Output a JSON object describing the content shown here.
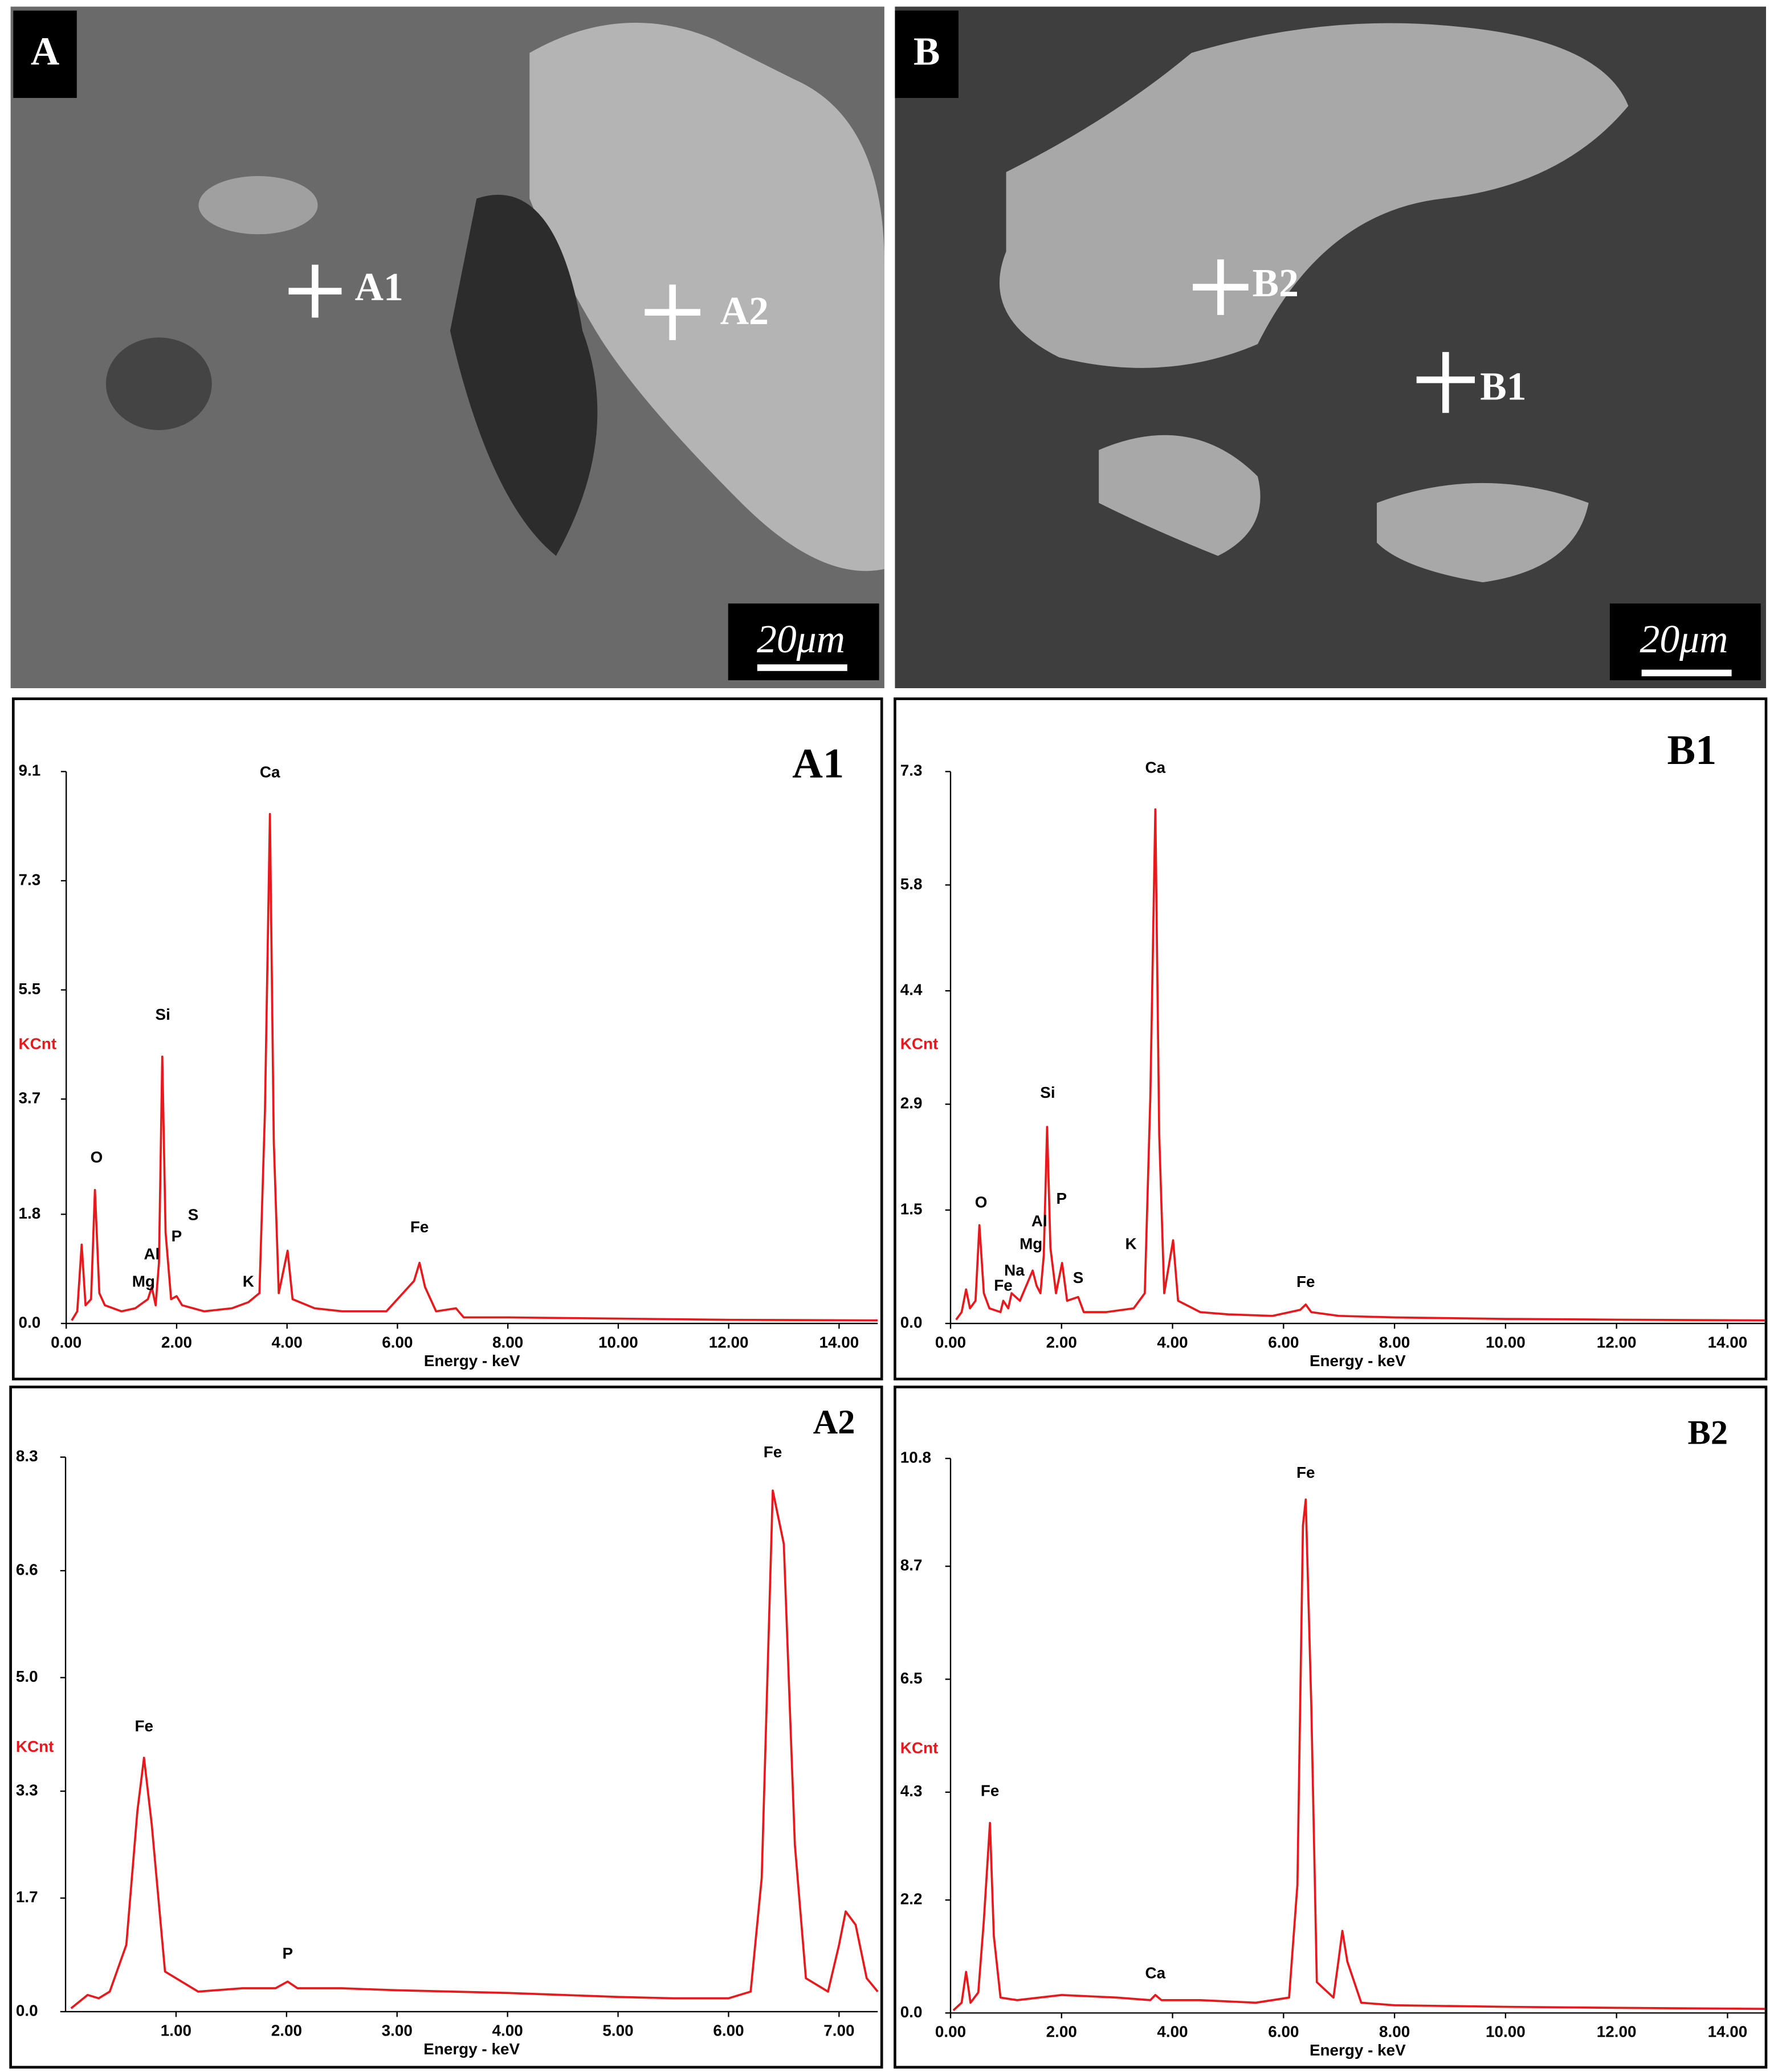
{
  "images": [
    {
      "label": "A",
      "markers": [
        "A1",
        "A2"
      ],
      "scale_bar": "20μm"
    },
    {
      "label": "B",
      "markers": [
        "B2",
        "B1"
      ],
      "scale_bar": "20μm"
    }
  ],
  "chart_data": [
    {
      "type": "line",
      "title": "A1",
      "y_label": "KCnt",
      "x_label": "Energy - keV",
      "color": "#e8191c",
      "x": [
        0.1,
        0.2,
        0.28,
        0.35,
        0.45,
        0.52,
        0.6,
        0.7,
        1.0,
        1.25,
        1.48,
        1.55,
        1.62,
        1.68,
        1.74,
        1.8,
        1.9,
        2.0,
        2.1,
        2.5,
        3.0,
        3.3,
        3.5,
        3.6,
        3.69,
        3.76,
        3.85,
        4.01,
        4.1,
        4.5,
        5.0,
        5.8,
        6.3,
        6.4,
        6.5,
        6.7,
        7.06,
        7.2,
        8,
        10,
        12,
        14.7
      ],
      "series": [
        {
          "name": "A1",
          "color": "#e8191c",
          "values": [
            0.05,
            0.2,
            1.3,
            0.3,
            0.4,
            2.2,
            0.5,
            0.3,
            0.2,
            0.25,
            0.4,
            0.6,
            0.3,
            1.0,
            4.4,
            1.5,
            0.4,
            0.45,
            0.3,
            0.2,
            0.25,
            0.35,
            0.5,
            3.5,
            8.4,
            3.0,
            0.5,
            1.2,
            0.4,
            0.25,
            0.2,
            0.2,
            0.7,
            1.0,
            0.6,
            0.2,
            0.25,
            0.1,
            0.1,
            0.08,
            0.06,
            0.05
          ]
        }
      ],
      "annotations": [
        {
          "text": "O",
          "x": 0.55,
          "y": 2.55
        },
        {
          "text": "Si",
          "x": 1.75,
          "y": 4.9
        },
        {
          "text": "Ca",
          "x": 3.69,
          "y": 8.9
        },
        {
          "text": "Mg",
          "x": 1.4,
          "y": 0.5
        },
        {
          "text": "Al",
          "x": 1.55,
          "y": 0.95
        },
        {
          "text": "P",
          "x": 2.0,
          "y": 1.25
        },
        {
          "text": "S",
          "x": 2.3,
          "y": 1.6
        },
        {
          "text": "K",
          "x": 3.3,
          "y": 0.5
        },
        {
          "text": "Fe",
          "x": 6.4,
          "y": 1.4
        }
      ],
      "xlim": [
        0,
        14.7
      ],
      "ylim": [
        0,
        9.1
      ],
      "xticks": [
        {
          "value": 0,
          "label": "0.00"
        },
        {
          "value": 2,
          "label": "2.00"
        },
        {
          "value": 4,
          "label": "4.00"
        },
        {
          "value": 6,
          "label": "6.00"
        },
        {
          "value": 8,
          "label": "8.00"
        },
        {
          "value": 10,
          "label": "10.00"
        },
        {
          "value": 12,
          "label": "12.00"
        },
        {
          "value": 14,
          "label": "14.00"
        }
      ],
      "yticks": [
        {
          "value": 0,
          "label": "0.0"
        },
        1.8,
        3.7,
        5.5,
        7.3,
        9.1
      ]
    },
    {
      "type": "line",
      "title": "B1",
      "y_label": "KCnt",
      "x_label": "Energy - keV",
      "color": "#e8191c",
      "x": [
        0.1,
        0.2,
        0.28,
        0.35,
        0.45,
        0.52,
        0.6,
        0.7,
        0.9,
        0.95,
        1.04,
        1.1,
        1.25,
        1.48,
        1.55,
        1.62,
        1.68,
        1.74,
        1.8,
        1.9,
        2.01,
        2.1,
        2.3,
        2.4,
        2.8,
        3.3,
        3.5,
        3.6,
        3.69,
        3.76,
        3.85,
        4.01,
        4.1,
        4.5,
        5.0,
        5.8,
        6.3,
        6.4,
        6.5,
        7.0,
        8,
        10,
        12,
        14.67
      ],
      "series": [
        {
          "name": "B1",
          "color": "#e8191c",
          "values": [
            0.05,
            0.15,
            0.45,
            0.2,
            0.3,
            1.3,
            0.4,
            0.2,
            0.15,
            0.3,
            0.2,
            0.4,
            0.3,
            0.7,
            0.5,
            0.4,
            0.9,
            2.6,
            1.0,
            0.4,
            0.8,
            0.3,
            0.35,
            0.15,
            0.15,
            0.2,
            0.4,
            3.0,
            6.8,
            2.5,
            0.4,
            1.1,
            0.3,
            0.15,
            0.12,
            0.1,
            0.18,
            0.25,
            0.15,
            0.1,
            0.08,
            0.06,
            0.05,
            0.04
          ]
        }
      ],
      "annotations": [
        {
          "text": "O",
          "x": 0.55,
          "y": 1.45
        },
        {
          "text": "Fe",
          "x": 0.95,
          "y": 0.35
        },
        {
          "text": "Na",
          "x": 1.15,
          "y": 0.55
        },
        {
          "text": "Mg",
          "x": 1.45,
          "y": 0.9
        },
        {
          "text": "Al",
          "x": 1.6,
          "y": 1.2
        },
        {
          "text": "P",
          "x": 2.0,
          "y": 1.5
        },
        {
          "text": "S",
          "x": 2.3,
          "y": 0.45
        },
        {
          "text": "K",
          "x": 3.25,
          "y": 0.9
        },
        {
          "text": "Si",
          "x": 1.75,
          "y": 2.9
        },
        {
          "text": "Ca",
          "x": 3.69,
          "y": 7.2
        },
        {
          "text": "Fe",
          "x": 6.4,
          "y": 0.4
        }
      ],
      "xlim": [
        0,
        14.67
      ],
      "ylim": [
        0,
        7.3
      ],
      "xticks": [
        {
          "value": 0,
          "label": "0.00"
        },
        {
          "value": 2,
          "label": "2.00"
        },
        {
          "value": 4,
          "label": "4.00"
        },
        {
          "value": 6,
          "label": "6.00"
        },
        {
          "value": 8,
          "label": "8.00"
        },
        {
          "value": 10,
          "label": "10.00"
        },
        {
          "value": 12,
          "label": "12.00"
        },
        {
          "value": 14,
          "label": "14.00"
        }
      ],
      "yticks": [
        {
          "value": 0,
          "label": "0.0"
        },
        1.5,
        2.9,
        4.4,
        5.8,
        7.3
      ]
    },
    {
      "type": "line",
      "title": "A2",
      "y_label": "KCnt",
      "x_label": "Energy - keV",
      "color": "#e8191c",
      "x": [
        0.05,
        0.2,
        0.3,
        0.4,
        0.55,
        0.65,
        0.71,
        0.78,
        0.9,
        1.2,
        1.6,
        1.9,
        2.01,
        2.1,
        2.5,
        3.0,
        3.5,
        4.0,
        4.5,
        5.0,
        5.5,
        6.0,
        6.2,
        6.3,
        6.4,
        6.5,
        6.6,
        6.7,
        6.9,
        7.0,
        7.06,
        7.15,
        7.25,
        7.35
      ],
      "series": [
        {
          "name": "A2",
          "color": "#e8191c",
          "values": [
            0.05,
            0.25,
            0.2,
            0.3,
            1.0,
            3.0,
            3.8,
            2.8,
            0.6,
            0.3,
            0.35,
            0.35,
            0.45,
            0.35,
            0.35,
            0.32,
            0.3,
            0.28,
            0.25,
            0.22,
            0.2,
            0.2,
            0.3,
            2.0,
            7.8,
            7.0,
            2.5,
            0.5,
            0.3,
            1.0,
            1.5,
            1.3,
            0.5,
            0.3
          ]
        }
      ],
      "annotations": [
        {
          "text": "Fe",
          "x": 0.71,
          "y": 4.1
        },
        {
          "text": "P",
          "x": 2.01,
          "y": 0.7
        },
        {
          "text": "Fe",
          "x": 6.4,
          "y": 8.2
        }
      ],
      "xlim": [
        0,
        7.35
      ],
      "ylim": [
        0,
        8.3
      ],
      "xticks": [
        {
          "value": 1,
          "label": "1.00"
        },
        {
          "value": 2,
          "label": "2.00"
        },
        {
          "value": 3,
          "label": "3.00"
        },
        {
          "value": 4,
          "label": "4.00"
        },
        {
          "value": 5,
          "label": "5.00"
        },
        {
          "value": 6,
          "label": "6.00"
        },
        {
          "value": 7,
          "label": "7.00"
        }
      ],
      "yticks": [
        {
          "value": 0,
          "label": "0.0"
        },
        1.7,
        3.3,
        {
          "value": 5,
          "label": "5.0"
        },
        6.6,
        8.3
      ]
    },
    {
      "type": "line",
      "title": "B2",
      "y_label": "KCnt",
      "x_label": "Energy - keV",
      "color": "#e8191c",
      "x": [
        0.05,
        0.2,
        0.28,
        0.36,
        0.5,
        0.6,
        0.71,
        0.78,
        0.9,
        1.2,
        2.0,
        3.0,
        3.6,
        3.69,
        3.8,
        4.5,
        5.5,
        6.1,
        6.25,
        6.35,
        6.4,
        6.5,
        6.6,
        6.9,
        7.0,
        7.06,
        7.15,
        7.4,
        8,
        10,
        12,
        14.67
      ],
      "series": [
        {
          "name": "B2",
          "color": "#e8191c",
          "values": [
            0.05,
            0.2,
            0.8,
            0.2,
            0.4,
            1.8,
            3.7,
            1.5,
            0.3,
            0.25,
            0.35,
            0.3,
            0.25,
            0.35,
            0.25,
            0.25,
            0.2,
            0.3,
            2.5,
            9.5,
            10.0,
            6.0,
            0.6,
            0.3,
            1.1,
            1.6,
            1.0,
            0.2,
            0.15,
            0.12,
            0.1,
            0.08
          ]
        }
      ],
      "annotations": [
        {
          "text": "Fe",
          "x": 0.71,
          "y": 4.1
        },
        {
          "text": "Ca",
          "x": 3.69,
          "y": 0.55
        },
        {
          "text": "Fe",
          "x": 6.4,
          "y": 10.3
        }
      ],
      "xlim": [
        0,
        14.67
      ],
      "ylim": [
        0,
        10.8
      ],
      "xticks": [
        {
          "value": 0,
          "label": "0.00"
        },
        {
          "value": 2,
          "label": "2.00"
        },
        {
          "value": 4,
          "label": "4.00"
        },
        {
          "value": 6,
          "label": "6.00"
        },
        {
          "value": 8,
          "label": "8.00"
        },
        {
          "value": 10,
          "label": "10.00"
        },
        {
          "value": 12,
          "label": "12.00"
        },
        {
          "value": 14,
          "label": "14.00"
        }
      ],
      "yticks": [
        {
          "value": 0,
          "label": "0.0"
        },
        2.2,
        4.3,
        6.5,
        8.7,
        10.8
      ]
    }
  ]
}
